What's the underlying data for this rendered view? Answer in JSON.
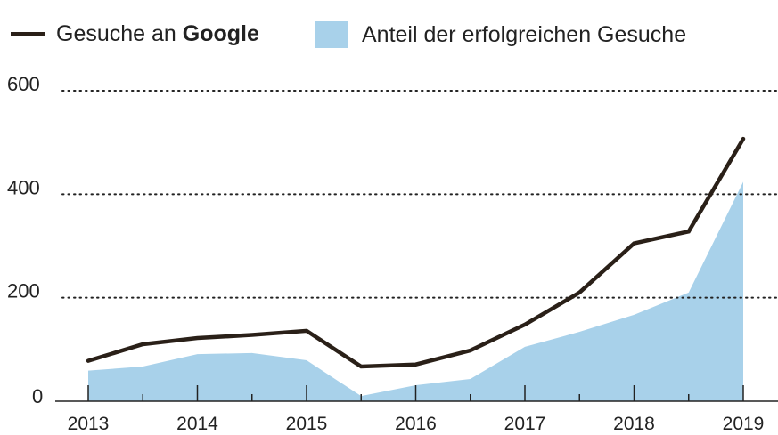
{
  "chart_data": {
    "type": "line",
    "legend": {
      "line_label_prefix": "Gesuche an ",
      "line_label_bold": "Google",
      "area_label": "Anteil der erfolgreichen Gesuche",
      "placement": "top"
    },
    "x": [
      2013,
      2013.5,
      2014,
      2014.5,
      2015,
      2015.5,
      2016,
      2016.5,
      2017,
      2017.5,
      2018,
      2018.5,
      2019
    ],
    "x_tick_labels": [
      "2013",
      "2014",
      "2015",
      "2016",
      "2017",
      "2018",
      "2019"
    ],
    "y_tick_labels": [
      "0",
      "200",
      "400",
      "600"
    ],
    "ylim": [
      0,
      600
    ],
    "grid": "dotted horizontal",
    "series": [
      {
        "name": "Gesuche an Google",
        "type": "line",
        "color": "#2a2018",
        "values": [
          78,
          110,
          122,
          128,
          136,
          67,
          71,
          98,
          148,
          210,
          305,
          328,
          507
        ]
      },
      {
        "name": "Anteil der erfolgreichen Gesuche",
        "type": "area",
        "color": "#a8d1ea",
        "values": [
          59,
          67,
          91,
          93,
          79,
          10,
          31,
          43,
          105,
          134,
          167,
          210,
          424
        ]
      }
    ]
  }
}
